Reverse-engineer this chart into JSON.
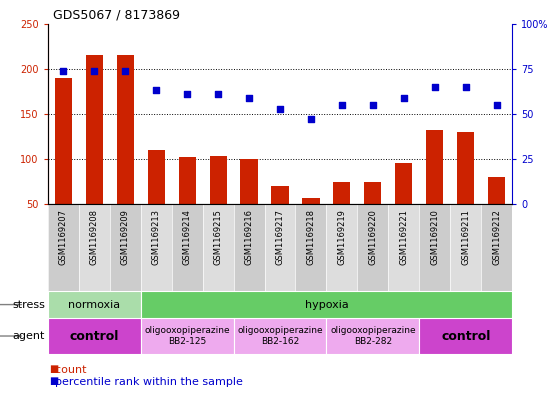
{
  "title": "GDS5067 / 8173869",
  "samples": [
    "GSM1169207",
    "GSM1169208",
    "GSM1169209",
    "GSM1169213",
    "GSM1169214",
    "GSM1169215",
    "GSM1169216",
    "GSM1169217",
    "GSM1169218",
    "GSM1169219",
    "GSM1169220",
    "GSM1169221",
    "GSM1169210",
    "GSM1169211",
    "GSM1169212"
  ],
  "counts": [
    190,
    215,
    215,
    110,
    102,
    103,
    100,
    70,
    57,
    75,
    75,
    96,
    132,
    130,
    80
  ],
  "percentiles": [
    74,
    74,
    74,
    63,
    61,
    61,
    59,
    53,
    47,
    55,
    55,
    59,
    65,
    65,
    55
  ],
  "ylim_left": [
    50,
    250
  ],
  "ylim_right": [
    0,
    100
  ],
  "yticks_left": [
    50,
    100,
    150,
    200,
    250
  ],
  "yticks_right": [
    0,
    25,
    50,
    75,
    100
  ],
  "ytick_labels_left": [
    "50",
    "100",
    "150",
    "200",
    "250"
  ],
  "ytick_labels_right": [
    "0",
    "25",
    "50",
    "75",
    "100%"
  ],
  "bar_color": "#cc2200",
  "dot_color": "#0000cc",
  "stress_groups": [
    {
      "label": "normoxia",
      "start": 0,
      "end": 3,
      "color": "#aaddaa"
    },
    {
      "label": "hypoxia",
      "start": 3,
      "end": 15,
      "color": "#66cc66"
    }
  ],
  "agent_groups": [
    {
      "label": "control",
      "start": 0,
      "end": 3,
      "color": "#cc44cc",
      "bold": true
    },
    {
      "label": "oligooxopiperazine\nBB2-125",
      "start": 3,
      "end": 6,
      "color": "#eeaaee",
      "bold": false
    },
    {
      "label": "oligooxopiperazine\nBB2-162",
      "start": 6,
      "end": 9,
      "color": "#eeaaee",
      "bold": false
    },
    {
      "label": "oligooxopiperazine\nBB2-282",
      "start": 9,
      "end": 12,
      "color": "#eeaaee",
      "bold": false
    },
    {
      "label": "control",
      "start": 12,
      "end": 15,
      "color": "#cc44cc",
      "bold": true
    }
  ],
  "col_bg_even": "#cccccc",
  "col_bg_odd": "#dddddd"
}
